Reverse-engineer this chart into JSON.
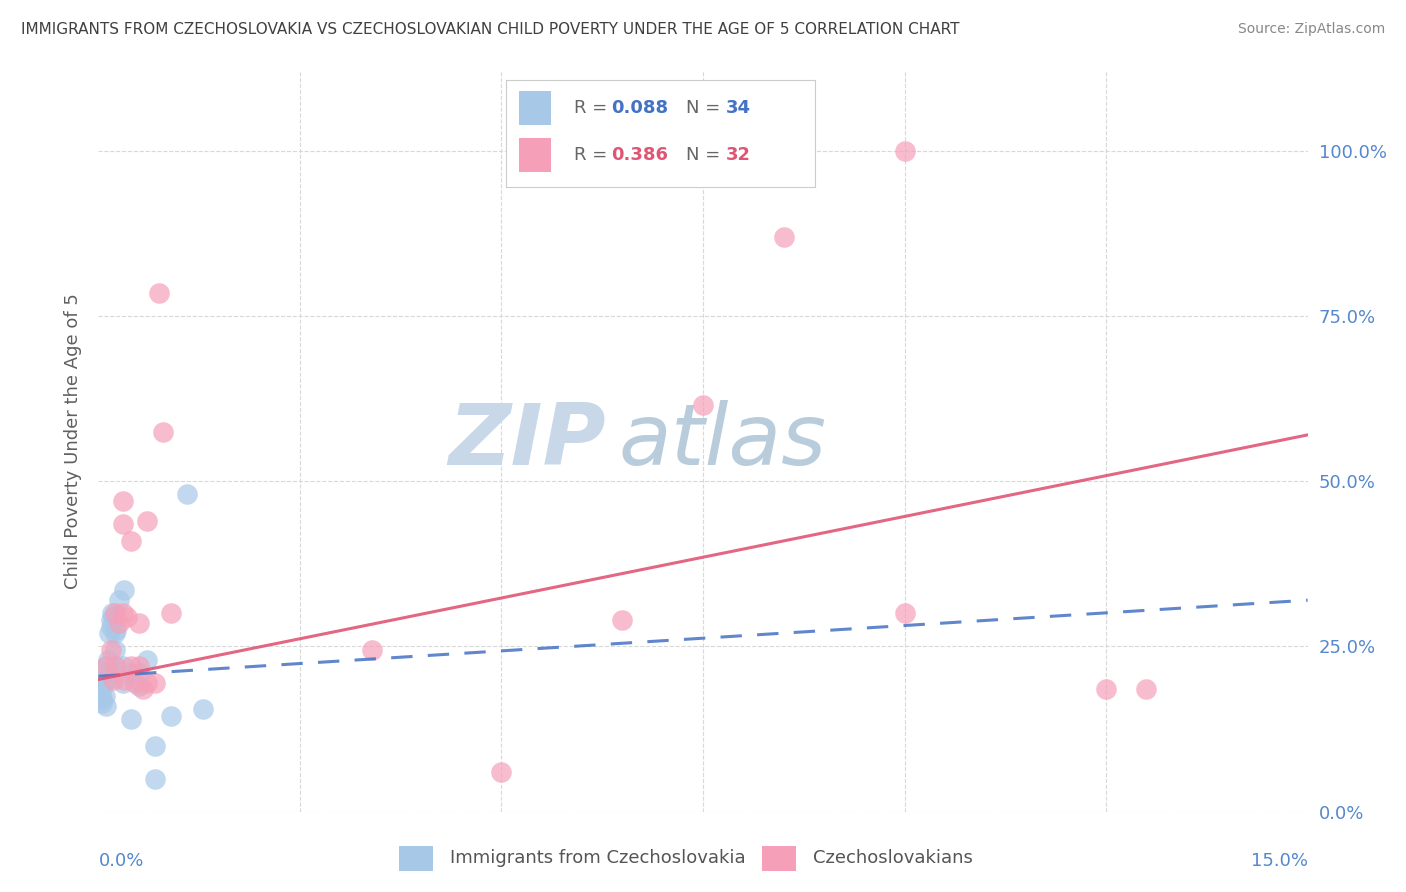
{
  "title": "IMMIGRANTS FROM CZECHOSLOVAKIA VS CZECHOSLOVAKIAN CHILD POVERTY UNDER THE AGE OF 5 CORRELATION CHART",
  "source": "Source: ZipAtlas.com",
  "ylabel": "Child Poverty Under the Age of 5",
  "legend_blue_r": "0.088",
  "legend_blue_n": "34",
  "legend_pink_r": "0.386",
  "legend_pink_n": "32",
  "legend_label_blue": "Immigrants from Czechoslovakia",
  "legend_label_pink": "Czechoslovakians",
  "blue_scatter_x": [
    0.0003,
    0.0004,
    0.0005,
    0.0006,
    0.0007,
    0.0008,
    0.0009,
    0.001,
    0.001,
    0.0011,
    0.0012,
    0.0013,
    0.0015,
    0.0016,
    0.0017,
    0.0018,
    0.002,
    0.002,
    0.002,
    0.0022,
    0.0025,
    0.003,
    0.003,
    0.0032,
    0.004,
    0.004,
    0.005,
    0.005,
    0.006,
    0.007,
    0.007,
    0.009,
    0.011,
    0.013
  ],
  "blue_scatter_y": [
    0.18,
    0.17,
    0.165,
    0.19,
    0.2,
    0.175,
    0.16,
    0.21,
    0.22,
    0.2,
    0.23,
    0.27,
    0.28,
    0.29,
    0.3,
    0.295,
    0.22,
    0.245,
    0.27,
    0.275,
    0.32,
    0.195,
    0.22,
    0.335,
    0.21,
    0.14,
    0.21,
    0.19,
    0.23,
    0.1,
    0.05,
    0.145,
    0.48,
    0.155
  ],
  "pink_scatter_x": [
    0.001,
    0.0015,
    0.0018,
    0.002,
    0.002,
    0.0025,
    0.003,
    0.003,
    0.003,
    0.0032,
    0.0035,
    0.004,
    0.004,
    0.0045,
    0.005,
    0.005,
    0.0055,
    0.006,
    0.006,
    0.007,
    0.0075,
    0.008,
    0.009,
    0.034,
    0.05,
    0.065,
    0.075,
    0.085,
    0.1,
    0.1,
    0.125,
    0.13
  ],
  "pink_scatter_y": [
    0.22,
    0.245,
    0.2,
    0.22,
    0.3,
    0.285,
    0.3,
    0.435,
    0.47,
    0.2,
    0.295,
    0.22,
    0.41,
    0.195,
    0.22,
    0.285,
    0.185,
    0.195,
    0.44,
    0.195,
    0.785,
    0.575,
    0.3,
    0.245,
    0.06,
    0.29,
    0.615,
    0.87,
    1.0,
    0.3,
    0.185,
    0.185
  ],
  "background_color": "#ffffff",
  "blue_color": "#a8c8e8",
  "pink_color": "#f5a0b8",
  "blue_line_color": "#4472c4",
  "pink_line_color": "#e05575",
  "grid_color": "#d8d8d8",
  "title_color": "#404040",
  "source_color": "#888888",
  "axis_tick_color": "#5588cc",
  "ylabel_color": "#606060",
  "watermark_zip_color": "#c8d8e8",
  "watermark_atlas_color": "#b8ccdc",
  "xmin": 0.0,
  "xmax": 0.15,
  "ymin": 0.0,
  "ymax": 1.12
}
